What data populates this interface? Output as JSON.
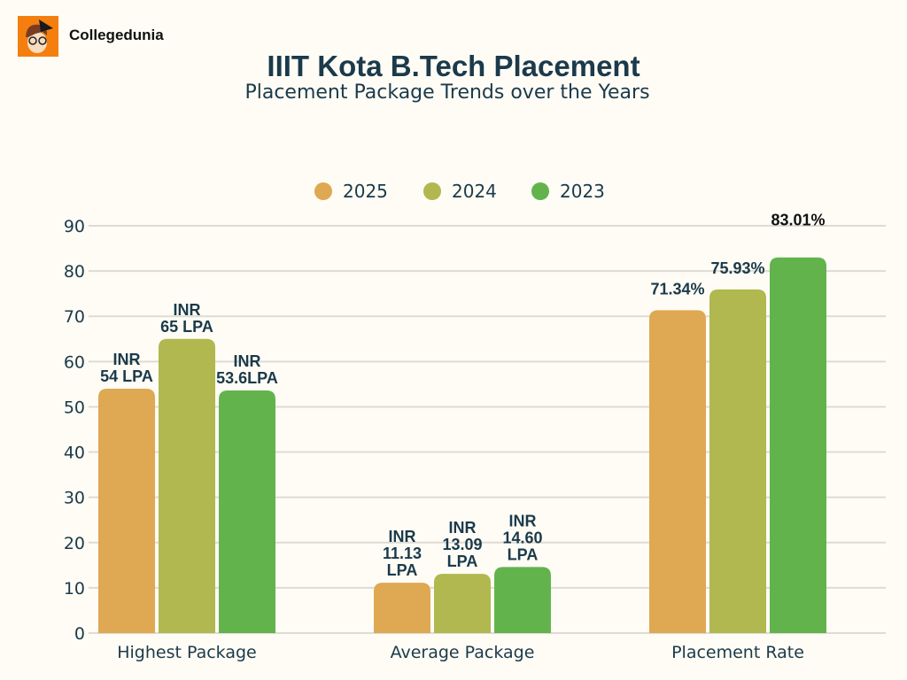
{
  "brand": {
    "name": "Collegedunia"
  },
  "header": {
    "title": "IIIT Kota B.Tech  Placement",
    "subtitle": "Placement Package Trends over the Years"
  },
  "chart_data": {
    "type": "bar",
    "categories": [
      "Highest Package",
      "Average Package",
      "Placement Rate"
    ],
    "ylim": [
      0,
      90
    ],
    "yticks": [
      0,
      10,
      20,
      30,
      40,
      50,
      60,
      70,
      80,
      90
    ],
    "grid": true,
    "legend_position": "top",
    "series": [
      {
        "name": "2025",
        "color": "#DFA852",
        "values": [
          54,
          11.13,
          71.34
        ],
        "labels": [
          [
            "INR",
            "54 LPA"
          ],
          [
            "INR",
            "11.13",
            "LPA"
          ],
          [
            "71.34%"
          ]
        ]
      },
      {
        "name": "2024",
        "color": "#B0B84F",
        "values": [
          65,
          13.09,
          75.93
        ],
        "labels": [
          [
            "INR",
            "65 LPA"
          ],
          [
            "INR",
            "13.09",
            "LPA"
          ],
          [
            "75.93%"
          ]
        ]
      },
      {
        "name": "2023",
        "color": "#63B34D",
        "values": [
          53.6,
          14.6,
          83.01
        ],
        "labels": [
          [
            "INR",
            "53.6LPA"
          ],
          [
            "INR",
            "14.60",
            "LPA"
          ],
          [
            "83.01%"
          ]
        ]
      }
    ]
  }
}
